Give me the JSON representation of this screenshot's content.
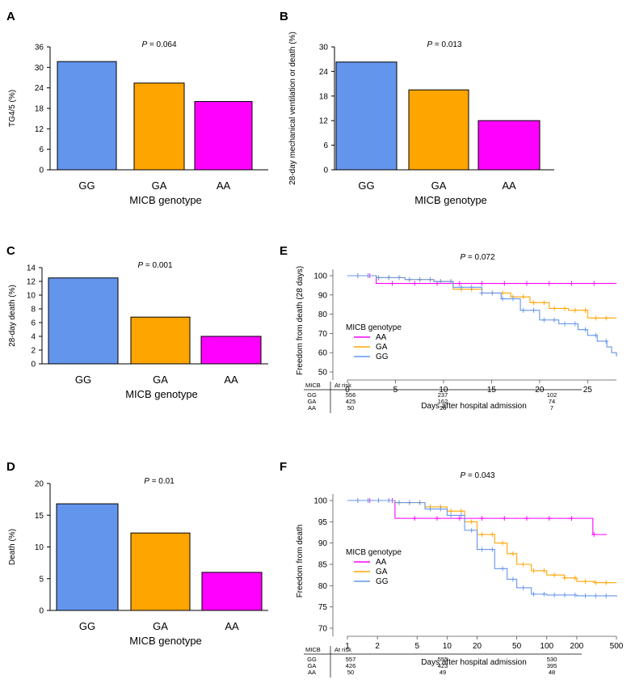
{
  "figure": {
    "colors": {
      "GG": "#6495ed",
      "GA": "#ffa500",
      "AA": "#ff00ff"
    }
  },
  "chart_data": [
    {
      "panel": "A",
      "type": "bar",
      "p_value": "P = 0.064",
      "categories": [
        "GG",
        "GA",
        "AA"
      ],
      "values": [
        31.7,
        25.4,
        20.0
      ],
      "xlabel": "MICB genotype",
      "ylabel": "TG4/5 (%)",
      "ylim": [
        0,
        36
      ],
      "yticks": [
        "0",
        "6",
        "12",
        "18",
        "24",
        "30",
        "36"
      ]
    },
    {
      "panel": "B",
      "type": "bar",
      "p_value": "P = 0.013",
      "categories": [
        "GG",
        "GA",
        "AA"
      ],
      "values": [
        26.3,
        19.5,
        12.0
      ],
      "xlabel": "MICB genotype",
      "ylabel": "28-day mechanical ventilation or death (%)",
      "ylim": [
        0,
        30
      ],
      "yticks": [
        "0",
        "6",
        "12",
        "18",
        "24",
        "30"
      ]
    },
    {
      "panel": "C",
      "type": "bar",
      "p_value": "P = 0.001",
      "categories": [
        "GG",
        "GA",
        "AA"
      ],
      "values": [
        12.5,
        6.8,
        4.0
      ],
      "xlabel": "MICB genotype",
      "ylabel": "28-day  death (%)",
      "ylim": [
        0,
        14
      ],
      "yticks": [
        "0",
        "2",
        "4",
        "6",
        "8",
        "10",
        "12",
        "14"
      ]
    },
    {
      "panel": "D",
      "type": "bar",
      "p_value": "P = 0.01",
      "categories": [
        "GG",
        "GA",
        "AA"
      ],
      "values": [
        16.8,
        12.2,
        6.0
      ],
      "xlabel": "MICB genotype",
      "ylabel": "Death (%)",
      "ylim": [
        0,
        20
      ],
      "yticks": [
        "0",
        "5",
        "10",
        "15",
        "20"
      ]
    },
    {
      "panel": "E",
      "type": "line",
      "p_value": "P = 0.072",
      "xlabel": "Days after hospital admission",
      "ylabel": "Freedom from death (28 days)",
      "xlim": [
        0,
        28
      ],
      "ylim": [
        50,
        100
      ],
      "xticks": [
        "0",
        "5",
        "10",
        "15",
        "20",
        "25"
      ],
      "yticks": [
        "50",
        "60",
        "70",
        "80",
        "90",
        "100"
      ],
      "legend_title": "MICB genotype",
      "series": [
        {
          "name": "AA",
          "x": [
            0,
            3,
            3,
            28
          ],
          "y": [
            100,
            100,
            96,
            96
          ]
        },
        {
          "name": "GA",
          "x": [
            0,
            3,
            6,
            9,
            11,
            14,
            17,
            19,
            21,
            23,
            24,
            25,
            26,
            28
          ],
          "y": [
            100,
            99,
            98,
            97,
            93,
            91,
            89,
            86,
            83,
            82,
            82,
            78,
            78,
            78
          ]
        },
        {
          "name": "GG",
          "x": [
            0,
            3,
            6,
            9,
            11,
            14,
            16,
            18,
            20,
            22,
            24,
            25,
            26,
            27,
            27.5,
            28
          ],
          "y": [
            100,
            99,
            98,
            97,
            94,
            91,
            88,
            82,
            77,
            75,
            72,
            69,
            66,
            63,
            60,
            58
          ]
        }
      ],
      "risk_table": {
        "header": [
          "MICB",
          "At risk"
        ],
        "rows": [
          {
            "label": "GG",
            "values": [
              "556",
              "237",
              "102"
            ]
          },
          {
            "label": "GA",
            "values": [
              "425",
              "162",
              "74"
            ]
          },
          {
            "label": "AA",
            "values": [
              "50",
              "16",
              "7"
            ]
          }
        ]
      }
    },
    {
      "panel": "F",
      "type": "line",
      "p_value": "P = 0.043",
      "xlabel": "Days after hospital admission",
      "ylabel": "Freedom from death",
      "xscale": "log",
      "xlim": [
        1,
        500
      ],
      "ylim": [
        70,
        100
      ],
      "xticks": [
        "1",
        "2",
        "5",
        "10",
        "20",
        "50",
        "100",
        "200",
        "500"
      ],
      "yticks": [
        "70",
        "75",
        "80",
        "85",
        "90",
        "95",
        "100"
      ],
      "legend_title": "MICB genotype",
      "series": [
        {
          "name": "AA",
          "x": [
            1,
            3,
            3,
            290,
            290,
            400
          ],
          "y": [
            100,
            100,
            95.8,
            95.8,
            92,
            92
          ]
        },
        {
          "name": "GA",
          "x": [
            1,
            3,
            6,
            10,
            15,
            20,
            30,
            40,
            50,
            70,
            100,
            150,
            200,
            300,
            500
          ],
          "y": [
            100,
            99.5,
            98.5,
            97.5,
            95,
            92,
            90,
            87.5,
            85,
            83.5,
            82.5,
            81.8,
            81,
            80.7,
            80.7
          ]
        },
        {
          "name": "GG",
          "x": [
            1,
            3,
            6,
            10,
            15,
            20,
            30,
            40,
            50,
            70,
            100,
            200,
            500
          ],
          "y": [
            100,
            99.5,
            98,
            96.5,
            93,
            88.5,
            84,
            81.5,
            79.5,
            78,
            77.8,
            77.6,
            77.4
          ]
        }
      ],
      "risk_table": {
        "header": [
          "MICB",
          "At risk"
        ],
        "rows": [
          {
            "label": "GG",
            "values": [
              "557",
              "555",
              "530"
            ]
          },
          {
            "label": "GA",
            "values": [
              "426",
              "423",
              "395"
            ]
          },
          {
            "label": "AA",
            "values": [
              "50",
              "49",
              "48"
            ]
          }
        ]
      }
    }
  ]
}
